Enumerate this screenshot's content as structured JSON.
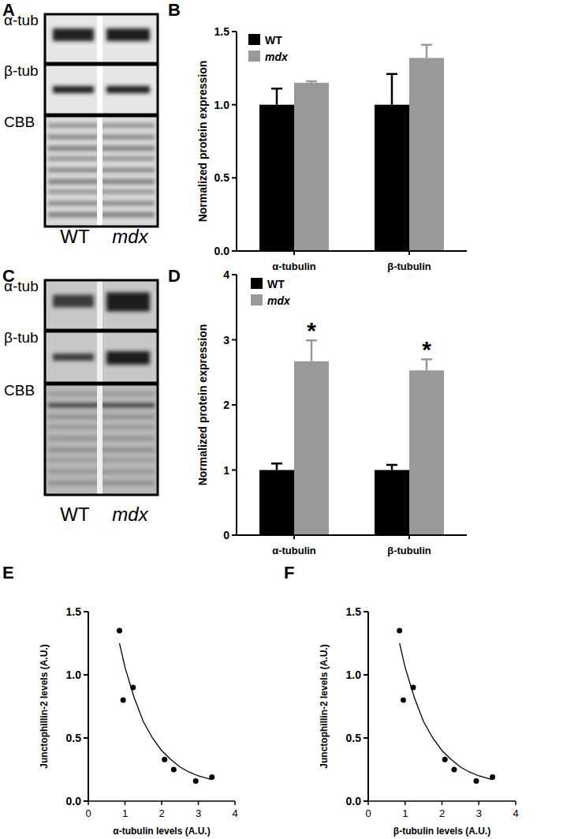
{
  "panel_labels": [
    "A",
    "B",
    "C",
    "D",
    "E",
    "F"
  ],
  "blots": [
    {
      "rows": [
        "α-tub",
        "β-tub",
        "CBB"
      ],
      "lanes": [
        "WT",
        "mdx"
      ]
    },
    {
      "rows": [
        "α-tub",
        "β-tub",
        "CBB"
      ],
      "lanes": [
        "WT",
        "mdx"
      ]
    }
  ],
  "chart_data": [
    {
      "type": "bar",
      "y_label": "Normalized protein expression",
      "categories": [
        "α-tubulin",
        "β-tubulin"
      ],
      "series": [
        {
          "name": "WT",
          "color": "#000000",
          "values": [
            1.0,
            1.0
          ],
          "error": [
            0.11,
            0.21
          ]
        },
        {
          "name": "mdx",
          "color": "#999999",
          "values": [
            1.15,
            1.32
          ],
          "error": [
            0.01,
            0.09
          ]
        }
      ],
      "ylim": [
        0,
        1.5
      ],
      "yticks": [
        {
          "value": 0,
          "label": "0.0"
        },
        {
          "value": 0.5,
          "label": "0.5"
        },
        {
          "value": 1,
          "label": "1.0"
        },
        {
          "value": 1.5,
          "label": "1.5"
        }
      ],
      "legend": "top-left"
    },
    {
      "type": "bar",
      "y_label": "Normalized protein expression",
      "categories": [
        "α-tubulin",
        "β-tubulin"
      ],
      "series": [
        {
          "name": "WT",
          "color": "#000000",
          "values": [
            1.0,
            1.0
          ],
          "error": [
            0.1,
            0.08
          ]
        },
        {
          "name": "mdx",
          "color": "#999999",
          "values": [
            2.67,
            2.53
          ],
          "error": [
            0.32,
            0.17
          ]
        }
      ],
      "annotations": [
        "*",
        "*"
      ],
      "ylim": [
        0,
        4
      ],
      "yticks": [
        0,
        1,
        2,
        3,
        4
      ],
      "legend": "top-left"
    },
    {
      "type": "scatter",
      "x_label": "α-tubulin levels (A.U.)",
      "y_label": "Junctophillin-2 levels (A.U.)",
      "series": [
        {
          "type": "scatter",
          "color": "#000000",
          "marker": "circle",
          "x": [
            0.85,
            0.95,
            1.22,
            2.08,
            2.33,
            2.93,
            3.37
          ],
          "values": [
            1.35,
            0.8,
            0.9,
            0.33,
            0.25,
            0.16,
            0.19
          ]
        },
        {
          "type": "line",
          "color": "#000000",
          "line_style": "solid",
          "x": [
            0.85,
            1.0,
            1.25,
            1.5,
            1.75,
            2.0,
            2.25,
            2.5,
            2.75,
            3.0,
            3.37
          ],
          "values": [
            1.25,
            1.06,
            0.82,
            0.63,
            0.5,
            0.4,
            0.33,
            0.27,
            0.23,
            0.2,
            0.17
          ]
        }
      ],
      "xlim": [
        0,
        4
      ],
      "xticks": [
        0,
        1,
        2,
        3,
        4
      ],
      "ylim": [
        0,
        1.5
      ],
      "yticks": [
        {
          "value": 0,
          "label": "0.0"
        },
        {
          "value": 0.5,
          "label": "0.5"
        },
        {
          "value": 1,
          "label": "1.0"
        },
        {
          "value": 1.5,
          "label": "1.5"
        }
      ]
    },
    {
      "type": "scatter",
      "x_label": "β-tubulin levels (A.U.)",
      "y_label": "Junctophillin-2 levels (A.U.)",
      "series": [
        {
          "type": "scatter",
          "color": "#000000",
          "marker": "circle",
          "x": [
            0.85,
            0.95,
            1.22,
            2.08,
            2.33,
            2.93,
            3.37
          ],
          "values": [
            1.35,
            0.8,
            0.9,
            0.33,
            0.25,
            0.16,
            0.19
          ]
        },
        {
          "type": "line",
          "color": "#000000",
          "line_style": "solid",
          "x": [
            0.85,
            1.0,
            1.25,
            1.5,
            1.75,
            2.0,
            2.25,
            2.5,
            2.75,
            3.0,
            3.37
          ],
          "values": [
            1.25,
            1.06,
            0.82,
            0.63,
            0.5,
            0.4,
            0.33,
            0.27,
            0.23,
            0.2,
            0.17
          ]
        }
      ],
      "xlim": [
        0,
        4
      ],
      "xticks": [
        0,
        1,
        2,
        3,
        4
      ],
      "ylim": [
        0,
        1.5
      ],
      "yticks": [
        {
          "value": 0,
          "label": "0.0"
        },
        {
          "value": 0.5,
          "label": "0.5"
        },
        {
          "value": 1,
          "label": "1.0"
        },
        {
          "value": 1.5,
          "label": "1.5"
        }
      ]
    }
  ]
}
